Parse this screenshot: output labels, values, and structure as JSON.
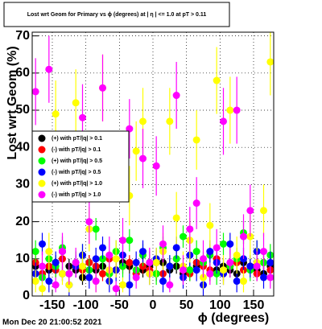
{
  "chart_data": {
    "type": "scatter",
    "title": "Lost wrt Geom for Primary vs ϕ (degrees) at | η | <= 1.0 at pT > 0.11",
    "x_label": "ϕ (degrees)",
    "y_label": "Lost wrt Geom (%)",
    "timestamp": "Mon Dec 20 21:00:52 2021",
    "xlim": [
      -180,
      180
    ],
    "ylim": [
      0,
      71
    ],
    "xticks": [
      -150,
      -100,
      -50,
      0,
      50,
      100,
      150
    ],
    "yticks": [
      0,
      10,
      20,
      30,
      40,
      50,
      60,
      70
    ],
    "grid": true,
    "legend": "left",
    "x": [
      -175,
      -165,
      -155,
      -145,
      -135,
      -125,
      -115,
      -105,
      -95,
      -85,
      -75,
      -65,
      -55,
      -45,
      -35,
      -25,
      -15,
      -5,
      5,
      15,
      25,
      35,
      45,
      55,
      65,
      75,
      85,
      95,
      105,
      115,
      125,
      135,
      145,
      155,
      165,
      175
    ],
    "series": [
      {
        "name": "(+) with pT/|q| > 0.1",
        "color": "#000000",
        "values": [
          8,
          6,
          7,
          9,
          6,
          8,
          7,
          5,
          9,
          7,
          8,
          6,
          7,
          9,
          8,
          6,
          7,
          8,
          6,
          9,
          7,
          8,
          6,
          7,
          8,
          9,
          6,
          7,
          8,
          7,
          6,
          9,
          8,
          7,
          6,
          8
        ],
        "errors": [
          2,
          2,
          2,
          2,
          2,
          2,
          2,
          2,
          2,
          2,
          2,
          2,
          2,
          2,
          2,
          2,
          2,
          2,
          2,
          2,
          2,
          2,
          2,
          2,
          2,
          2,
          2,
          2,
          2,
          2,
          2,
          2,
          2,
          2,
          2,
          2
        ]
      },
      {
        "name": "(-) with pT/|q| > 0.1",
        "color": "#ff0000",
        "values": [
          9,
          6,
          8,
          7,
          10,
          6,
          8,
          7,
          9,
          8,
          6,
          10,
          7,
          8,
          9,
          6,
          8,
          7,
          9,
          6,
          8,
          10,
          7,
          6,
          9,
          8,
          7,
          10,
          6,
          8,
          9,
          7,
          8,
          6,
          9,
          7
        ],
        "errors": [
          2,
          2,
          2,
          2,
          2,
          2,
          2,
          2,
          2,
          2,
          2,
          2,
          2,
          2,
          2,
          2,
          2,
          2,
          2,
          2,
          2,
          2,
          2,
          2,
          2,
          2,
          2,
          2,
          2,
          2,
          2,
          2,
          2,
          2,
          2,
          2
        ]
      },
      {
        "name": "(+) with pT/|q| > 0.5",
        "color": "#00ff00",
        "values": [
          12,
          5,
          10,
          8,
          13,
          6,
          9,
          11,
          7,
          18,
          10,
          6,
          12,
          8,
          15,
          7,
          11,
          9,
          6,
          13,
          8,
          10,
          16,
          7,
          12,
          9,
          11,
          6,
          14,
          8,
          10,
          17,
          7,
          12,
          9,
          11
        ],
        "errors": [
          3,
          3,
          3,
          3,
          3,
          3,
          3,
          3,
          3,
          3,
          3,
          3,
          3,
          3,
          3,
          3,
          3,
          3,
          3,
          3,
          3,
          3,
          3,
          3,
          3,
          3,
          3,
          3,
          3,
          3,
          3,
          3,
          3,
          3,
          3,
          3
        ]
      },
      {
        "name": "(-) with pT/|q| > 0.5",
        "color": "#0000ff",
        "values": [
          6,
          14,
          4,
          9,
          12,
          3,
          8,
          11,
          5,
          10,
          13,
          4,
          7,
          11,
          3,
          9,
          12,
          6,
          10,
          4,
          8,
          13,
          5,
          11,
          7,
          3,
          12,
          9,
          6,
          14,
          4,
          10,
          8,
          12,
          5,
          9
        ],
        "errors": [
          3,
          3,
          3,
          3,
          3,
          3,
          3,
          3,
          3,
          3,
          3,
          3,
          3,
          3,
          3,
          3,
          3,
          3,
          3,
          3,
          3,
          3,
          3,
          3,
          3,
          3,
          3,
          3,
          3,
          3,
          3,
          3,
          3,
          3,
          3,
          3
        ]
      },
      {
        "name": "(+) with pT/|q| > 1.0",
        "color": "#ffff00",
        "values": [
          4,
          2,
          12,
          49,
          6,
          3,
          52,
          8,
          18,
          4,
          56,
          7,
          10,
          3,
          27,
          39,
          47,
          6,
          9,
          12,
          47,
          21,
          8,
          15,
          42,
          5,
          19,
          58,
          7,
          50,
          11,
          4,
          16,
          9,
          23,
          63
        ],
        "errors": [
          3,
          2,
          5,
          9,
          3,
          2,
          9,
          4,
          6,
          3,
          9,
          4,
          5,
          2,
          8,
          8,
          9,
          3,
          4,
          5,
          9,
          7,
          4,
          6,
          8,
          3,
          6,
          9,
          4,
          9,
          5,
          3,
          6,
          4,
          7,
          9
        ]
      },
      {
        "name": "(-) with pT/|q| > 1.0",
        "color": "#ff00ff",
        "values": [
          55,
          8,
          61,
          3,
          12,
          6,
          9,
          48,
          20,
          4,
          56,
          11,
          2,
          15,
          45,
          5,
          37,
          9,
          35,
          14,
          3,
          54,
          7,
          18,
          25,
          10,
          6,
          13,
          47,
          9,
          50,
          16,
          23,
          8,
          12,
          5
        ],
        "errors": [
          9,
          4,
          9,
          2,
          5,
          3,
          4,
          9,
          6,
          3,
          9,
          5,
          2,
          6,
          8,
          3,
          8,
          4,
          8,
          5,
          2,
          9,
          4,
          6,
          7,
          5,
          3,
          5,
          9,
          4,
          9,
          6,
          7,
          4,
          5,
          3
        ]
      }
    ]
  }
}
